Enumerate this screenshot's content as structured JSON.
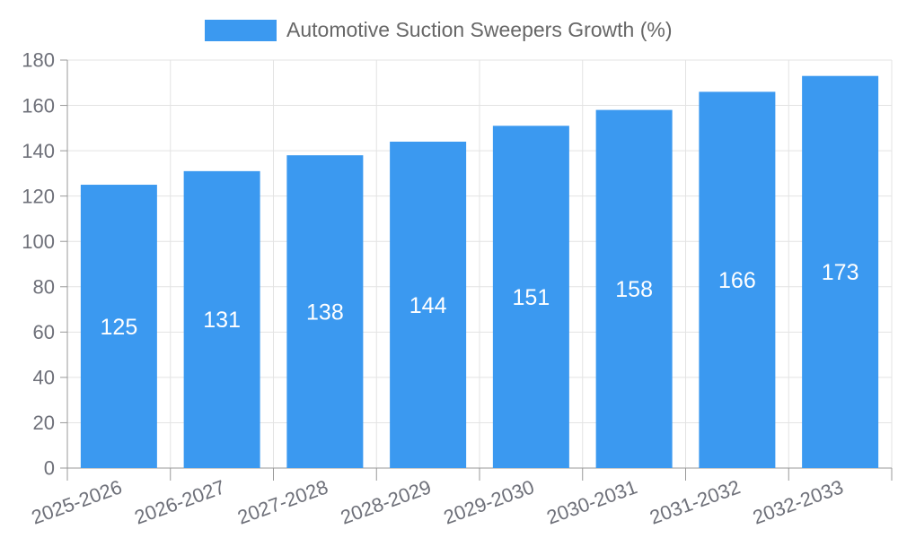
{
  "chart": {
    "legend": {
      "label": "Automotive Suction Sweepers Growth (%)"
    },
    "colors": {
      "bar": "#3B99F0",
      "axis_line": "#999999",
      "grid_line": "#E3E3E3",
      "tick_label": "#6E7079",
      "legend_text": "#676767",
      "value_label": "#FFFFFF"
    }
  },
  "chart_data": {
    "type": "bar",
    "title": "Automotive Suction Sweepers Growth (%)",
    "series_name": "Automotive Suction Sweepers Growth (%)",
    "categories": [
      "2025-2026",
      "2026-2027",
      "2027-2028",
      "2028-2029",
      "2029-2030",
      "2030-2031",
      "2031-2032",
      "2032-2033"
    ],
    "values": [
      125,
      131,
      138,
      144,
      151,
      158,
      166,
      173
    ],
    "value_labels_shown": [
      "125",
      "131",
      "138",
      "144",
      "151",
      "158",
      "166",
      "173"
    ],
    "xlabel": "",
    "ylabel": "",
    "ylim": [
      0,
      180
    ],
    "yticks": [
      0,
      20,
      40,
      60,
      80,
      100,
      120,
      140,
      160,
      180
    ],
    "grid": true,
    "legend_position": "top-center",
    "value_label_position": "inside-middle",
    "x_label_rotation_deg": -20
  }
}
